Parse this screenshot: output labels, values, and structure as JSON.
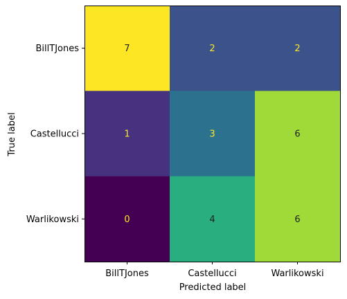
{
  "chart_data": {
    "type": "heatmap",
    "title": "",
    "xlabel": "Predicted label",
    "ylabel": "True label",
    "x_categories": [
      "BillTJones",
      "Castellucci",
      "Warlikowski"
    ],
    "y_categories": [
      "BillTJones",
      "Castellucci",
      "Warlikowski"
    ],
    "values": [
      [
        7,
        2,
        2
      ],
      [
        1,
        3,
        6
      ],
      [
        0,
        4,
        6
      ]
    ],
    "colormap": "viridis",
    "cell_colors": [
      [
        "#fde725",
        "#3b528b",
        "#3b528b"
      ],
      [
        "#46327e",
        "#2c728e",
        "#a0da39"
      ],
      [
        "#440154",
        "#29af7f",
        "#a0da39"
      ]
    ],
    "text_colors": {
      "on_dark": "#fde725",
      "on_light": "#1f1f1f"
    },
    "grid": false,
    "legend": "none"
  }
}
